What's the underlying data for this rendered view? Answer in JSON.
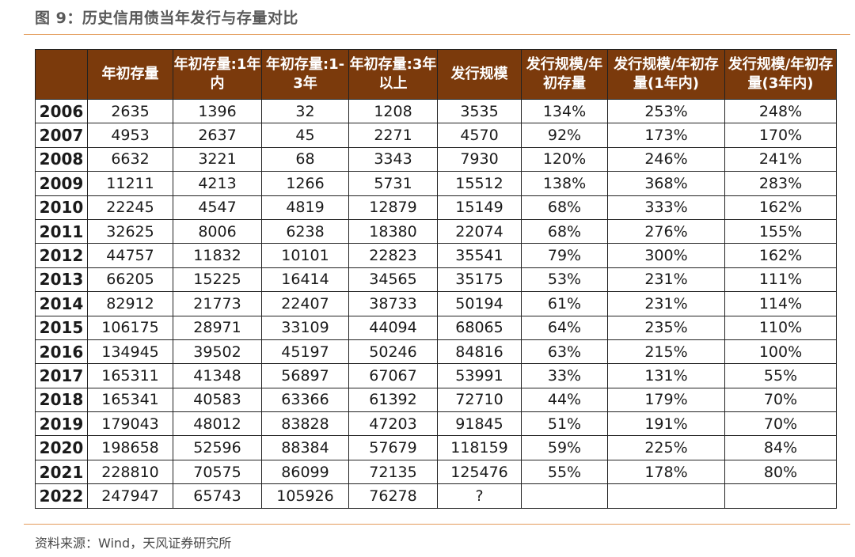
{
  "title": "图 9：历史信用债当年发行与存量对比",
  "source": "资料来源：Wind，天风证券研究所",
  "colors": {
    "header_bg": "#7b3a0c",
    "header_text": "#ffffff",
    "rule": "#e39b5a"
  },
  "table": {
    "headers": [
      "",
      "年初存量",
      "年初存量:1年内",
      "年初存量:1-3年",
      "年初存量:3年以上",
      "发行规模",
      "发行规模/年初存量",
      "发行规模/年初存量(1年内)",
      "发行规模/年初存量(3年内)"
    ],
    "rows": [
      [
        "2006",
        "2635",
        "1396",
        "32",
        "1208",
        "3535",
        "134%",
        "253%",
        "248%"
      ],
      [
        "2007",
        "4953",
        "2637",
        "45",
        "2271",
        "4570",
        "92%",
        "173%",
        "170%"
      ],
      [
        "2008",
        "6632",
        "3221",
        "68",
        "3343",
        "7930",
        "120%",
        "246%",
        "241%"
      ],
      [
        "2009",
        "11211",
        "4213",
        "1266",
        "5731",
        "15512",
        "138%",
        "368%",
        "283%"
      ],
      [
        "2010",
        "22245",
        "4547",
        "4819",
        "12879",
        "15149",
        "68%",
        "333%",
        "162%"
      ],
      [
        "2011",
        "32625",
        "8006",
        "6238",
        "18380",
        "22074",
        "68%",
        "276%",
        "155%"
      ],
      [
        "2012",
        "44757",
        "11832",
        "10101",
        "22823",
        "35541",
        "79%",
        "300%",
        "162%"
      ],
      [
        "2013",
        "66205",
        "15225",
        "16414",
        "34565",
        "35175",
        "53%",
        "231%",
        "111%"
      ],
      [
        "2014",
        "82912",
        "21773",
        "22407",
        "38733",
        "50194",
        "61%",
        "231%",
        "114%"
      ],
      [
        "2015",
        "106175",
        "28971",
        "33109",
        "44094",
        "68065",
        "64%",
        "235%",
        "110%"
      ],
      [
        "2016",
        "134945",
        "39502",
        "45197",
        "50246",
        "84816",
        "63%",
        "215%",
        "100%"
      ],
      [
        "2017",
        "165311",
        "41348",
        "56897",
        "67067",
        "53991",
        "33%",
        "131%",
        "55%"
      ],
      [
        "2018",
        "165341",
        "40583",
        "63366",
        "61392",
        "72710",
        "44%",
        "179%",
        "70%"
      ],
      [
        "2019",
        "179043",
        "48012",
        "83828",
        "47203",
        "91845",
        "51%",
        "191%",
        "70%"
      ],
      [
        "2020",
        "198658",
        "52596",
        "88384",
        "57679",
        "118159",
        "59%",
        "225%",
        "84%"
      ],
      [
        "2021",
        "228810",
        "70575",
        "86099",
        "72135",
        "125476",
        "55%",
        "178%",
        "80%"
      ],
      [
        "2022",
        "247947",
        "65743",
        "105926",
        "76278",
        "?",
        "",
        "",
        ""
      ]
    ]
  }
}
